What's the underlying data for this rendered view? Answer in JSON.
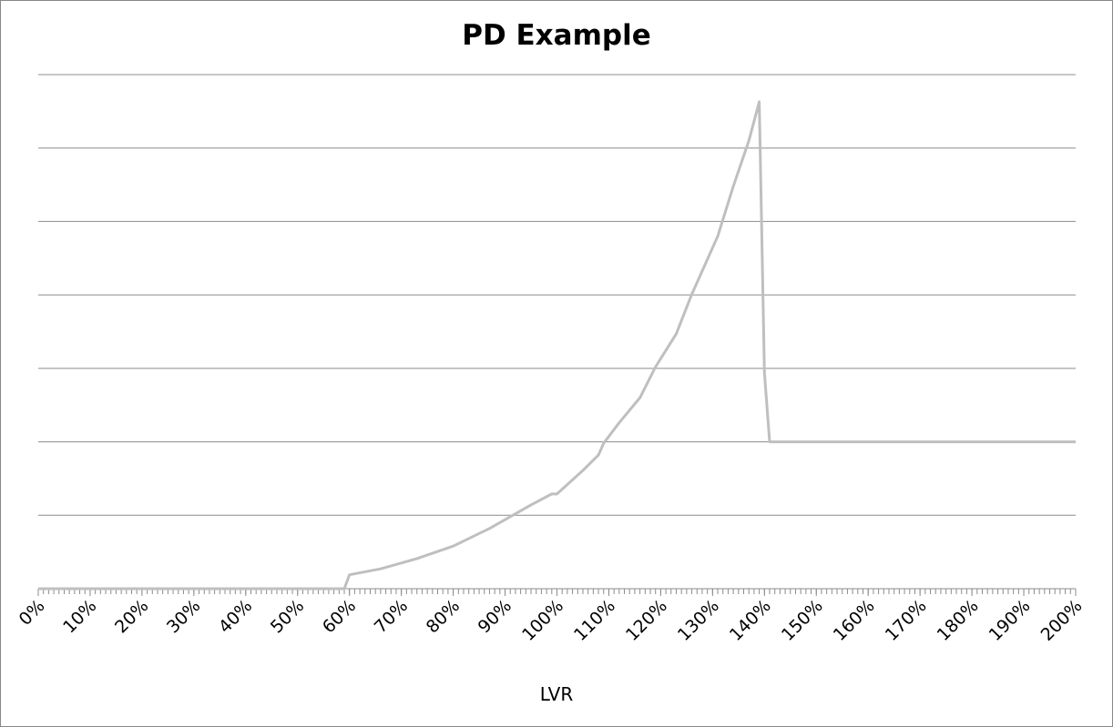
{
  "chart_data": {
    "type": "line",
    "title": "PD Example",
    "x_label": "LVR",
    "x": [
      0,
      59,
      60,
      66,
      73,
      80,
      87,
      95,
      99,
      100,
      105,
      108,
      109,
      112,
      116,
      119,
      123,
      126,
      131,
      134,
      137,
      139,
      140,
      141,
      200
    ],
    "series": [
      {
        "color": "#bfbfbf",
        "values": [
          0,
          0,
          0.19,
          0.27,
          0.41,
          0.58,
          0.82,
          1.14,
          1.29,
          1.29,
          1.61,
          1.82,
          1.98,
          2.26,
          2.6,
          3.02,
          3.47,
          4.01,
          4.8,
          5.48,
          6.1,
          6.63,
          2.94,
          2.0,
          2.0
        ]
      }
    ],
    "xlim": [
      0,
      200
    ],
    "xticks": [
      {
        "value": 0,
        "label": "0%"
      },
      {
        "value": 10,
        "label": "10%"
      },
      {
        "value": 20,
        "label": "20%"
      },
      {
        "value": 30,
        "label": "30%"
      },
      {
        "value": 40,
        "label": "40%"
      },
      {
        "value": 50,
        "label": "50%"
      },
      {
        "value": 60,
        "label": "60%"
      },
      {
        "value": 70,
        "label": "70%"
      },
      {
        "value": 80,
        "label": "80%"
      },
      {
        "value": 90,
        "label": "90%"
      },
      {
        "value": 100,
        "label": "100%"
      },
      {
        "value": 110,
        "label": "110%"
      },
      {
        "value": 120,
        "label": "120%"
      },
      {
        "value": 130,
        "label": "130%"
      },
      {
        "value": 140,
        "label": "140%"
      },
      {
        "value": 150,
        "label": "150%"
      },
      {
        "value": 160,
        "label": "160%"
      },
      {
        "value": 170,
        "label": "170%"
      },
      {
        "value": 180,
        "label": "180%"
      },
      {
        "value": 190,
        "label": "190%"
      },
      {
        "value": 200,
        "label": "200%"
      }
    ],
    "x_minor_step": 1,
    "ylim": [
      0,
      7
    ],
    "yticks": [
      0,
      1,
      2,
      3,
      4,
      5,
      6,
      7
    ],
    "show_ytick_labels": false,
    "grid": true
  }
}
